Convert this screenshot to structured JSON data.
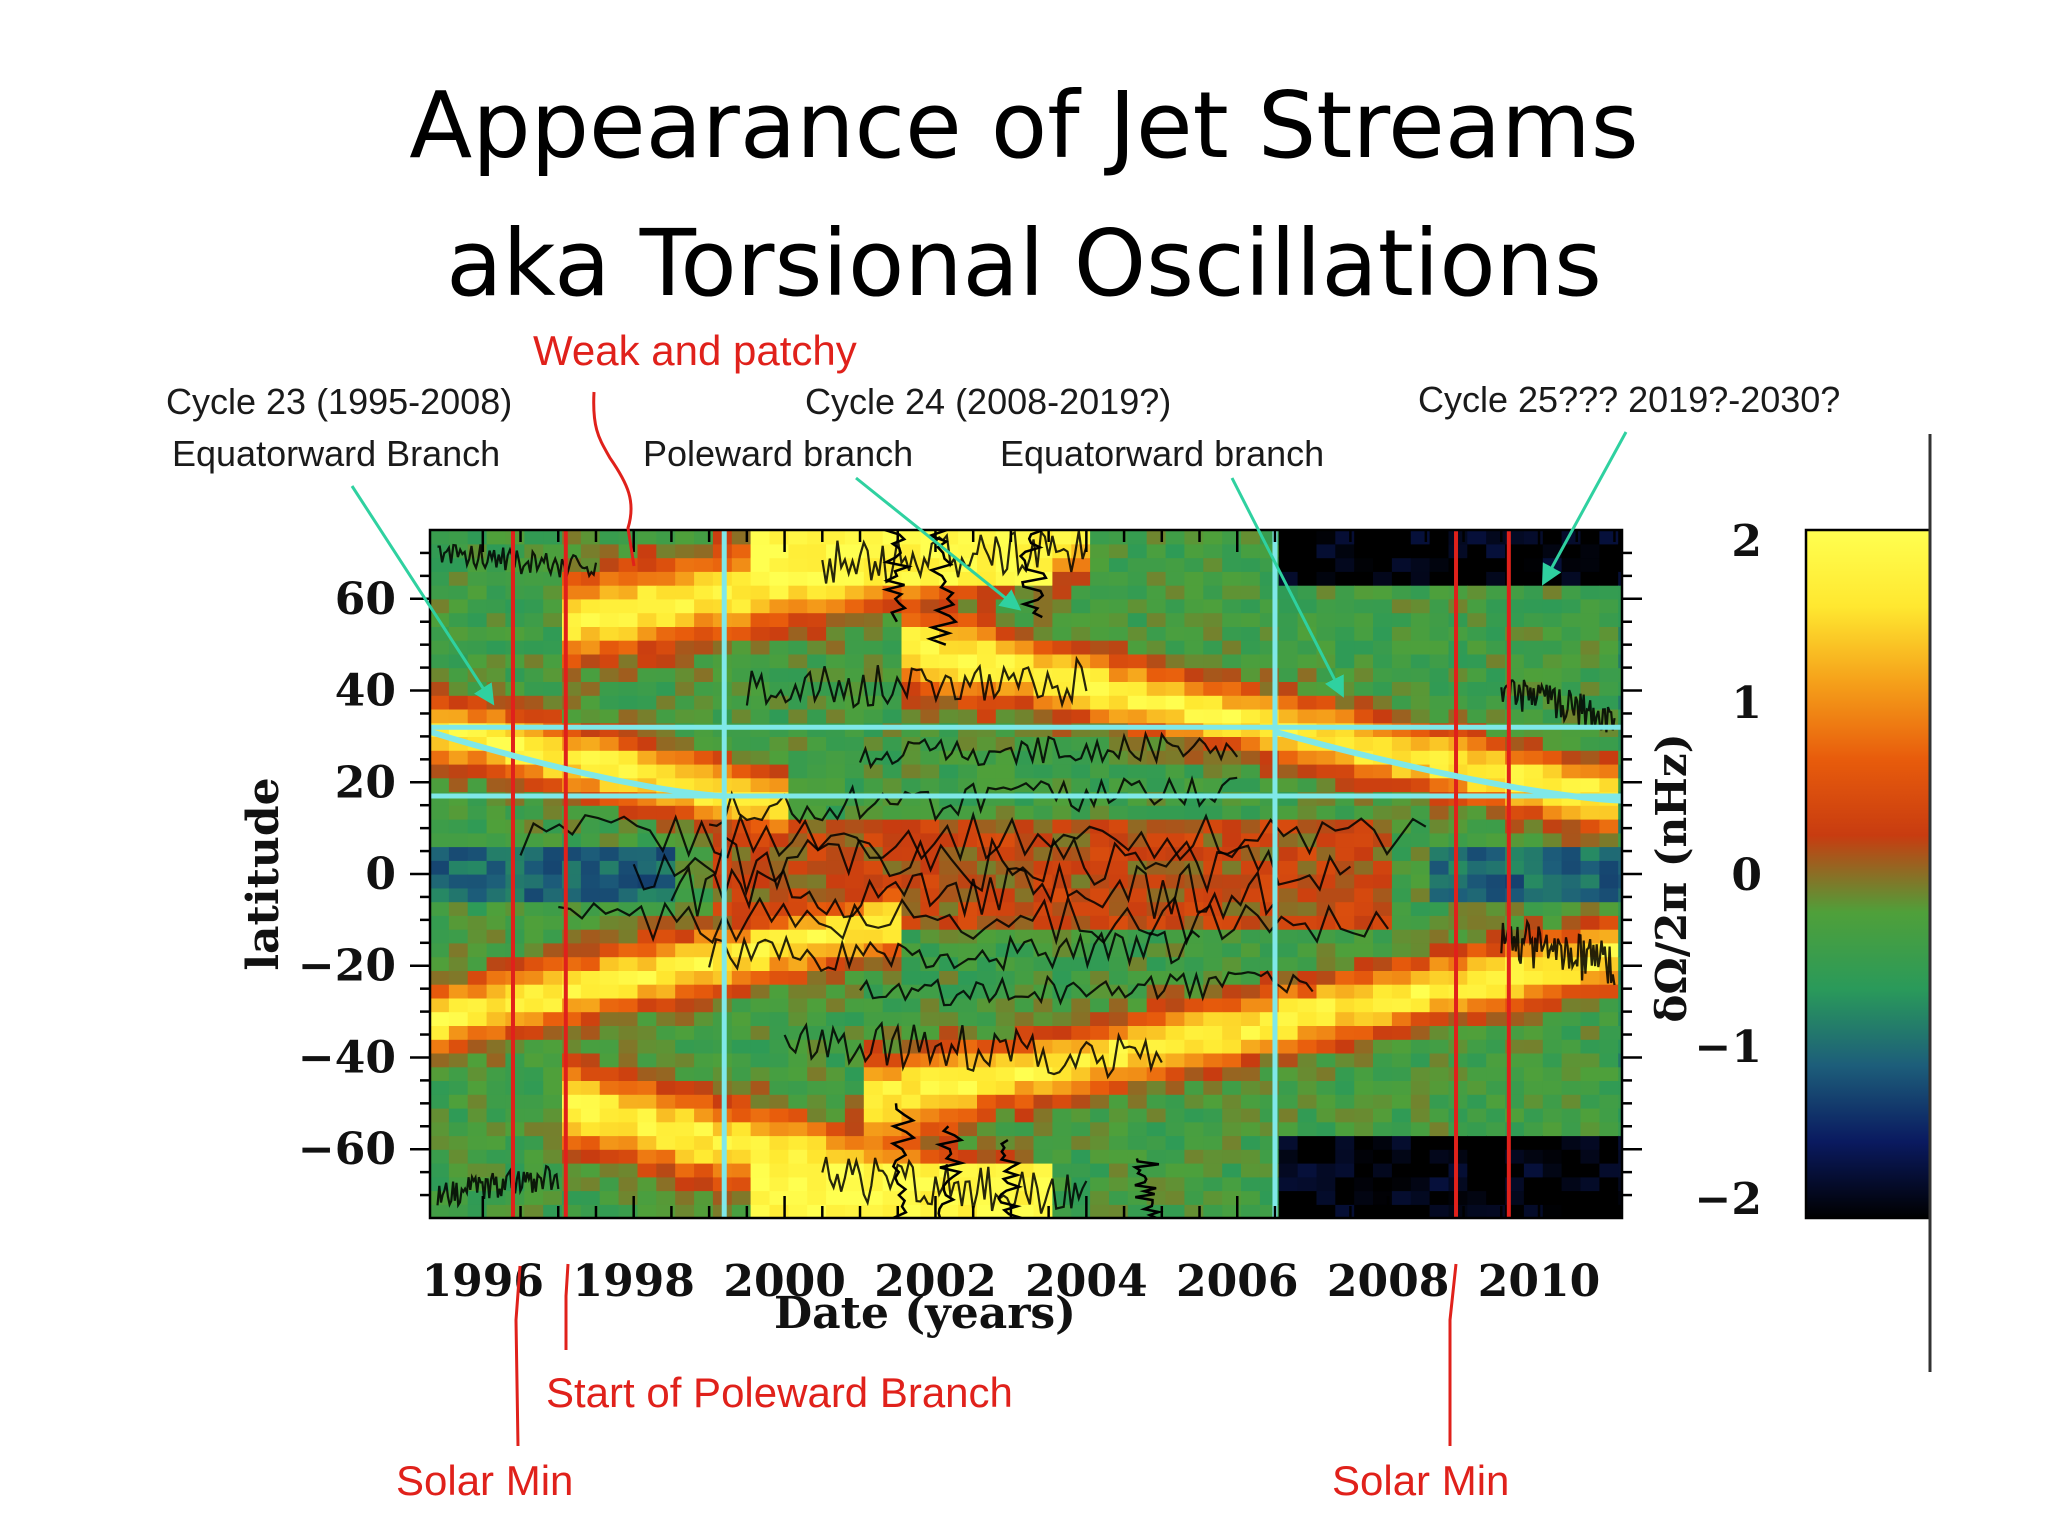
{
  "slide": {
    "title_line1": "Appearance of Jet Streams",
    "title_line2": "aka Torsional Oscillations"
  },
  "annotations": {
    "weak_patchy": "Weak and patchy",
    "cycle23": "Cycle 23 (1995-2008)",
    "cycle23_branch": "Equatorward Branch",
    "cycle24": "Cycle 24 (2008-2019?)",
    "cycle24_poleward": "Poleward branch",
    "cycle24_equatorward": "Equatorward branch",
    "cycle25": "Cycle 25??? 2019?-2030?",
    "start_poleward": "Start of Poleward Branch",
    "solar_min_left": "Solar Min",
    "solar_min_right": "Solar Min"
  },
  "chart_data": {
    "type": "heatmap",
    "xlabel": "Date (years)",
    "ylabel": "latitude",
    "xlim": [
      1995.3,
      2011.1
    ],
    "ylim": [
      -75,
      75
    ],
    "x_ticks": [
      1996,
      1998,
      2000,
      2002,
      2004,
      2006,
      2008,
      2010
    ],
    "y_ticks": [
      60,
      40,
      20,
      0,
      -20,
      -40,
      -60
    ],
    "colorbar": {
      "label": "δΩ/2π (nHz)",
      "range": [
        -2,
        2
      ],
      "ticks": [
        2,
        1,
        0,
        -1,
        -2
      ],
      "stops": [
        "#000000",
        "#0a1a60",
        "#1d5e7a",
        "#2a9a5a",
        "#4fa03a",
        "#c83c10",
        "#e85c0c",
        "#f5a01a",
        "#ffe830",
        "#ffff50"
      ]
    },
    "bands": [
      {
        "name": "Cycle 23 equatorward branch (north)",
        "start_year": 1995.3,
        "start_lat": 32,
        "end_year": 2000.0,
        "end_lat": 15
      },
      {
        "name": "Cycle 23 equatorward branch (south)",
        "start_year": 1995.3,
        "start_lat": -32,
        "end_year": 2001.5,
        "end_lat": -10
      },
      {
        "name": "Cycle 24 poleward branch (north)",
        "start_year": 1997.0,
        "start_lat": 55,
        "end_year": 2004.0,
        "end_lat": 75
      },
      {
        "name": "Cycle 24 poleward branch (south)",
        "start_year": 1997.0,
        "start_lat": -50,
        "end_year": 2003.5,
        "end_lat": -75
      },
      {
        "name": "Cycle 24 equatorward branch (north)",
        "start_year": 2001.5,
        "start_lat": 50,
        "end_year": 2011.1,
        "end_lat": 16
      },
      {
        "name": "Cycle 24 equatorward branch (south)",
        "start_year": 2001.0,
        "start_lat": -50,
        "end_year": 2011.1,
        "end_lat": -17
      }
    ],
    "vertical_lines": [
      {
        "year": 1996.4,
        "color": "#e0211b",
        "label": "Solar Min"
      },
      {
        "year": 1997.1,
        "color": "#e0211b",
        "label": "Start of Poleward Branch"
      },
      {
        "year": 1999.2,
        "color": "#7fe8e8",
        "label": ""
      },
      {
        "year": 2006.5,
        "color": "#7fe8e8",
        "label": ""
      },
      {
        "year": 2008.9,
        "color": "#e0211b",
        "label": "Solar Min"
      },
      {
        "year": 2009.6,
        "color": "#e0211b",
        "label": ""
      }
    ],
    "horizontal_lines": [
      {
        "lat": 32,
        "color": "#7fe8e8"
      },
      {
        "lat": 17,
        "color": "#7fe8e8"
      }
    ],
    "guide_lines": [
      {
        "x": [
          1995.3,
          1999.2
        ],
        "y": [
          31,
          17
        ],
        "color": "#7fe8e8"
      },
      {
        "x": [
          2006.5,
          2011.1
        ],
        "y": [
          31,
          16
        ],
        "color": "#7fe8e8"
      }
    ]
  }
}
